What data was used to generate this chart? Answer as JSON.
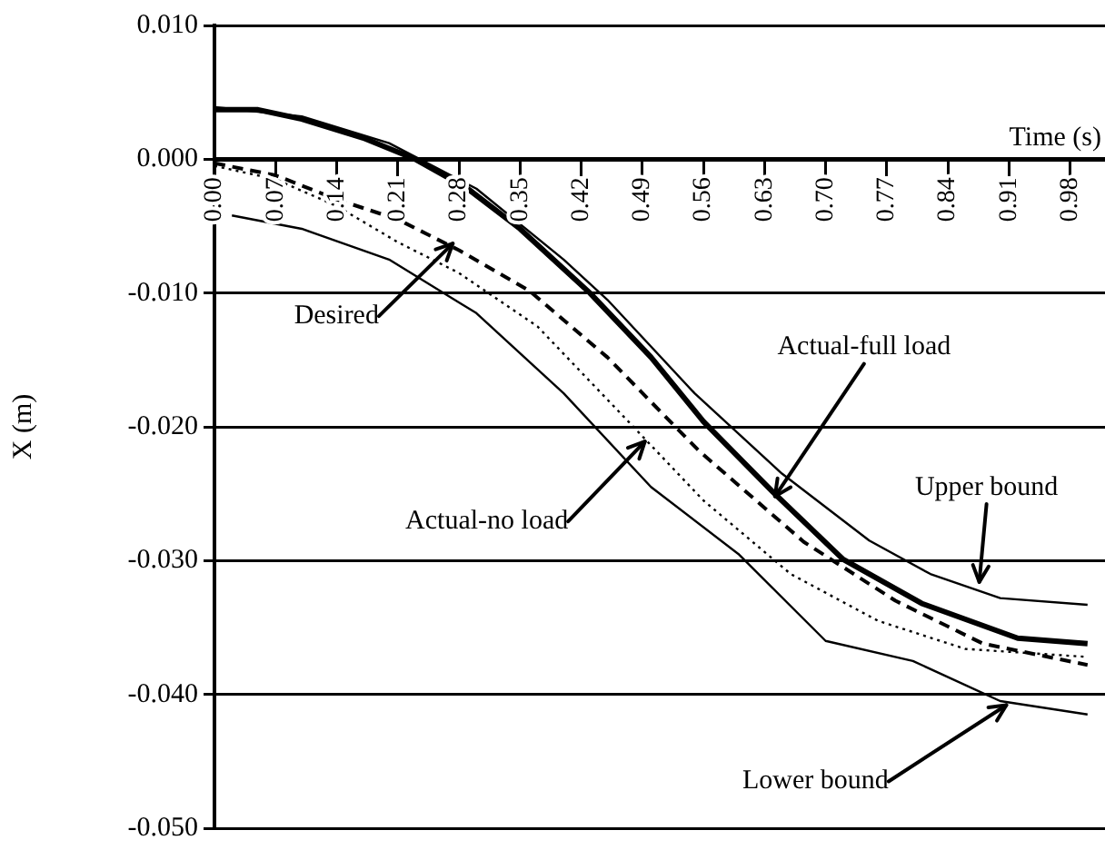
{
  "chart_data": {
    "type": "line",
    "xlabel": "Time (s)",
    "ylabel": "X (m)",
    "xlim": [
      0,
      1.02
    ],
    "xticks": [
      {
        "value": 0,
        "label": "0.00"
      },
      {
        "value": 0.07,
        "label": "0.07"
      },
      {
        "value": 0.14,
        "label": "0.14"
      },
      {
        "value": 0.21,
        "label": "0.21"
      },
      {
        "value": 0.28,
        "label": "0.28"
      },
      {
        "value": 0.35,
        "label": "0.35"
      },
      {
        "value": 0.42,
        "label": "0.42"
      },
      {
        "value": 0.49,
        "label": "0.49"
      },
      {
        "value": 0.56,
        "label": "0.56"
      },
      {
        "value": 0.63,
        "label": "0.63"
      },
      {
        "value": 0.7,
        "label": "0.70"
      },
      {
        "value": 0.77,
        "label": "0.77"
      },
      {
        "value": 0.84,
        "label": "0.84"
      },
      {
        "value": 0.91,
        "label": "0.91"
      },
      {
        "value": 0.98,
        "label": "0.98"
      }
    ],
    "ylim": [
      -0.05,
      0.01
    ],
    "yticks": [
      {
        "value": 0.01,
        "label": "0.010"
      },
      {
        "value": 0,
        "label": "0.000"
      },
      {
        "value": -0.01,
        "label": "-0.010"
      },
      {
        "value": -0.02,
        "label": "-0.020"
      },
      {
        "value": -0.03,
        "label": "-0.030"
      },
      {
        "value": -0.04,
        "label": "-0.040"
      },
      {
        "value": -0.05,
        "label": "-0.050"
      }
    ],
    "grid": "y",
    "legend": false,
    "marker": "none",
    "series": [
      {
        "color": "#000000",
        "line_style": "solid",
        "x": [
          0,
          0.1,
          0.2,
          0.3,
          0.4,
          0.45,
          0.55,
          0.65,
          0.75,
          0.82,
          0.9,
          1.0
        ],
        "values": [
          0.0039,
          0.0032,
          0.0012,
          -0.0022,
          -0.0075,
          -0.0105,
          -0.0175,
          -0.0235,
          -0.0285,
          -0.031,
          -0.0328,
          -0.0333
        ]
      },
      {
        "color": "#000000",
        "line_style": "solid",
        "x": [
          0,
          0.05,
          0.1,
          0.17,
          0.23,
          0.29,
          0.35,
          0.43,
          0.5,
          0.56,
          0.64,
          0.72,
          0.81,
          0.92,
          1.0
        ],
        "values": [
          0.0037,
          0.0037,
          0.003,
          0.0016,
          0,
          -0.0022,
          -0.0052,
          -0.01,
          -0.0148,
          -0.0196,
          -0.0249,
          -0.0299,
          -0.0332,
          -0.0358,
          -0.0362
        ]
      },
      {
        "color": "#000000",
        "line_style": "dashed",
        "x": [
          0,
          0.07,
          0.14,
          0.21,
          0.28,
          0.36,
          0.45,
          0.555,
          0.675,
          0.78,
          0.88,
          1.0
        ],
        "values": [
          -0.0003,
          -0.0012,
          -0.003,
          -0.0045,
          -0.0068,
          -0.0098,
          -0.0148,
          -0.0218,
          -0.0286,
          -0.033,
          -0.0362,
          -0.0378
        ]
      },
      {
        "color": "#000000",
        "line_style": "dotted",
        "x": [
          0,
          0.07,
          0.14,
          0.21,
          0.28,
          0.37,
          0.474,
          0.56,
          0.66,
          0.76,
          0.86,
          1.0
        ],
        "values": [
          -0.0005,
          -0.0015,
          -0.0035,
          -0.0062,
          -0.0085,
          -0.0125,
          -0.0196,
          -0.0255,
          -0.031,
          -0.0345,
          -0.0366,
          -0.0372
        ]
      },
      {
        "color": "#000000",
        "line_style": "solid",
        "x": [
          0.02,
          0.1,
          0.2,
          0.3,
          0.4,
          0.5,
          0.6,
          0.7,
          0.8,
          0.9,
          1.0
        ],
        "values": [
          -0.0042,
          -0.0052,
          -0.0075,
          -0.0115,
          -0.0175,
          -0.0245,
          -0.0295,
          -0.036,
          -0.0375,
          -0.0405,
          -0.0415
        ]
      }
    ],
    "annotations": [
      {
        "text": "Desired",
        "x": 0.273,
        "y": -0.0063
      },
      {
        "text": "Actual-full load",
        "x": 0.642,
        "y": -0.0252
      },
      {
        "text": "Upper bound",
        "x": 0.876,
        "y": -0.0316
      },
      {
        "text": "Actual-no load",
        "x": 0.493,
        "y": -0.0211
      },
      {
        "text": "Lower bound",
        "x": 0.907,
        "y": -0.0408
      }
    ]
  }
}
